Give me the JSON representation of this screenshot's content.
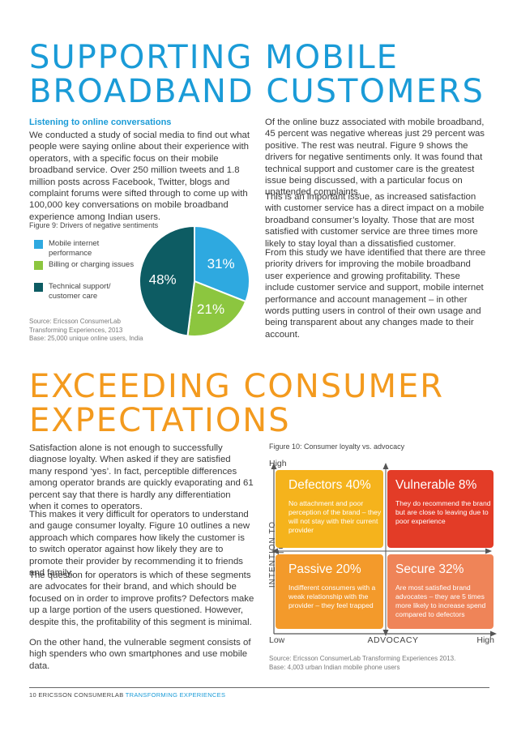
{
  "section1": {
    "title_lines": [
      "SUPPORTING MOBILE",
      "BROADBAND CUSTOMERS"
    ],
    "subheading": "Listening to online conversations",
    "left_paragraph": "We conducted a study of social media to find out what people were saying online about their experience with operators, with a specific focus on their mobile broadband service. Over 250 million tweets and 1.8 million posts across Facebook, Twitter, blogs and complaint forums were sifted through to come up with 100,000 key conversations on mobile broadband experience among Indian users.",
    "right_paragraphs": [
      "Of the online buzz associated with mobile broadband, 45 percent was negative whereas just 29 percent was positive. The rest was neutral. Figure 9 shows the drivers for negative sentiments only. It was found that technical support and customer care is the greatest issue being discussed, with a particular focus on unattended complaints.",
      "This is an important issue, as increased satisfaction with customer service has a direct impact on a mobile broadband consumer’s loyalty. Those that are most satisfied with customer service are three times more likely to stay loyal than a dissatisfied customer.",
      "From this study we have identified that there are three priority drivers for improving the mobile broadband user experience and growing profitability. These include customer service and support, mobile internet performance and account management – in other words putting users in control of their own usage and being transparent about any changes made to their account."
    ]
  },
  "figure9": {
    "caption": "Figure 9: Drivers of negative sentiments",
    "source_lines": [
      "Source: Ericsson ConsumerLab",
      "Transforming Experiences, 2013",
      "Base: 25,000 unique online users, India"
    ]
  },
  "chart_data": {
    "type": "pie",
    "title": "Figure 9: Drivers of negative sentiments",
    "categories": [
      "Mobile internet performance",
      "Billing or charging issues",
      "Technical support/ customer care"
    ],
    "values": [
      31,
      21,
      48
    ],
    "labels": [
      "31%",
      "21%",
      "48%"
    ],
    "colors": [
      "#2ea9e0",
      "#8cc63f",
      "#0d5c63"
    ],
    "legend": "left"
  },
  "section2": {
    "title_lines": [
      "EXCEEDING CONSUMER",
      "EXPECTATIONS"
    ],
    "paragraphs": [
      "Satisfaction alone is not enough to successfully diagnose loyalty. When asked if they are satisfied many respond ‘yes’. In fact, perceptible differences among operator brands are quickly evaporating and 61 percent say that there is hardly any differentiation when it comes to operators.",
      "This makes it very difficult for operators to understand and gauge consumer loyalty. Figure 10 outlines a new approach which compares how likely the customer is to switch operator against how likely they are to promote their provider by recommending it to friends and family.",
      "The question for operators is which of these segments are advocates for their brand, and which should be focused on in order to improve profits? Defectors make up a large portion of the users questioned. However, despite this, the profitability of this segment is minimal.",
      "On the other hand, the vulnerable segment consists of high spenders who own smartphones and use mobile data."
    ]
  },
  "figure10": {
    "caption": "Figure 10: Consumer loyalty vs. advocacy",
    "y_axis_label": "INTENTION TO SWITCH",
    "y_high": "High",
    "x_axis_label": "ADVOCACY",
    "x_low": "Low",
    "x_high": "High",
    "quadrants": [
      {
        "title": "Defectors 40%",
        "desc": "No attachment and poor perception of the brand – they will not stay with their current provider",
        "color": "#f5b31c"
      },
      {
        "title": "Vulnerable 8%",
        "desc": "They do recommend the brand but are close to leaving due to poor experience",
        "color": "#e33c27"
      },
      {
        "title": "Passive 20%",
        "desc": "Indifferent consumers with a weak relationship with the provider – they feel trapped",
        "color": "#f39a2b"
      },
      {
        "title": "Secure 32%",
        "desc": "Are most satisfied brand advocates – they are 5 times more likely to increase spend compared to defectors",
        "color": "#ef8458"
      }
    ],
    "source_lines": [
      "Source: Ericsson ConsumerLab Transforming Experiences 2013.",
      "Base: 4,003 urban Indian mobile phone users"
    ]
  },
  "footer": {
    "page_number": "10",
    "brand": "ERICSSON CONSUMERLAB",
    "section": "TRANSFORMING EXPERIENCES"
  }
}
